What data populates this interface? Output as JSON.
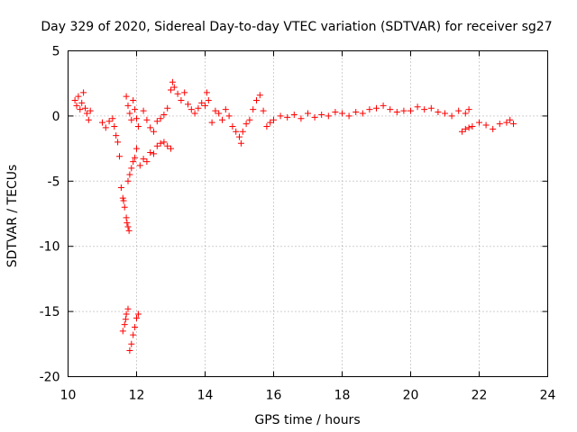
{
  "chart_data": {
    "type": "scatter",
    "title": "Day 329 of 2020, Sidereal Day-to-day VTEC variation (SDTVAR) for receiver sg27",
    "xlabel": "GPS time / hours",
    "ylabel": "SDTVAR / TECUs",
    "xlim": [
      10,
      24
    ],
    "ylim": [
      -20,
      5
    ],
    "xticks": [
      10,
      12,
      14,
      16,
      18,
      20,
      22,
      24
    ],
    "yticks": [
      5,
      0,
      -5,
      -10,
      -15,
      -20
    ],
    "grid": true,
    "marker": "+",
    "series": [
      {
        "name": "sg27",
        "color": "#ff0000",
        "points": [
          [
            10.2,
            1.2
          ],
          [
            10.25,
            0.8
          ],
          [
            10.3,
            1.5
          ],
          [
            10.35,
            0.5
          ],
          [
            10.4,
            1.0
          ],
          [
            10.45,
            1.8
          ],
          [
            10.5,
            0.6
          ],
          [
            10.55,
            0.2
          ],
          [
            10.6,
            -0.3
          ],
          [
            10.65,
            0.4
          ],
          [
            11.0,
            -0.5
          ],
          [
            11.1,
            -0.9
          ],
          [
            11.2,
            -0.4
          ],
          [
            11.3,
            -0.2
          ],
          [
            11.35,
            -0.8
          ],
          [
            11.4,
            -1.5
          ],
          [
            11.45,
            -2.0
          ],
          [
            11.5,
            -3.1
          ],
          [
            11.55,
            -5.5
          ],
          [
            11.6,
            -6.3
          ],
          [
            11.62,
            -6.5
          ],
          [
            11.65,
            -7.0
          ],
          [
            11.7,
            -7.8
          ],
          [
            11.72,
            -8.2
          ],
          [
            11.75,
            -8.5
          ],
          [
            11.78,
            -8.8
          ],
          [
            11.6,
            -16.5
          ],
          [
            11.65,
            -16.0
          ],
          [
            11.68,
            -15.6
          ],
          [
            11.7,
            -15.2
          ],
          [
            11.75,
            -14.8
          ],
          [
            11.8,
            -18.0
          ],
          [
            11.85,
            -17.5
          ],
          [
            11.9,
            -16.8
          ],
          [
            11.95,
            -16.2
          ],
          [
            12.0,
            -15.5
          ],
          [
            12.05,
            -15.2
          ],
          [
            11.75,
            -5.0
          ],
          [
            11.8,
            -4.5
          ],
          [
            11.85,
            -4.0
          ],
          [
            11.9,
            -3.5
          ],
          [
            11.95,
            -3.2
          ],
          [
            12.0,
            -2.5
          ],
          [
            11.7,
            1.5
          ],
          [
            11.75,
            0.8
          ],
          [
            11.8,
            0.2
          ],
          [
            11.85,
            -0.3
          ],
          [
            11.9,
            1.2
          ],
          [
            11.95,
            0.5
          ],
          [
            12.0,
            -0.2
          ],
          [
            12.05,
            -0.8
          ],
          [
            12.1,
            -3.8
          ],
          [
            12.2,
            -3.3
          ],
          [
            12.3,
            -3.5
          ],
          [
            12.4,
            -2.8
          ],
          [
            12.5,
            -2.9
          ],
          [
            12.6,
            -2.3
          ],
          [
            12.7,
            -2.1
          ],
          [
            12.8,
            -2.0
          ],
          [
            12.9,
            -2.3
          ],
          [
            13.0,
            -2.5
          ],
          [
            12.2,
            0.4
          ],
          [
            12.3,
            -0.3
          ],
          [
            12.4,
            -0.9
          ],
          [
            12.5,
            -1.2
          ],
          [
            12.6,
            -0.4
          ],
          [
            12.7,
            -0.2
          ],
          [
            12.8,
            0.1
          ],
          [
            12.9,
            0.6
          ],
          [
            13.0,
            2.0
          ],
          [
            13.05,
            2.6
          ],
          [
            13.1,
            2.2
          ],
          [
            13.2,
            1.7
          ],
          [
            13.3,
            1.2
          ],
          [
            13.4,
            1.8
          ],
          [
            13.5,
            0.9
          ],
          [
            13.6,
            0.5
          ],
          [
            13.7,
            0.2
          ],
          [
            13.8,
            0.6
          ],
          [
            13.9,
            1.0
          ],
          [
            14.0,
            0.8
          ],
          [
            14.05,
            1.8
          ],
          [
            14.1,
            1.2
          ],
          [
            14.2,
            -0.5
          ],
          [
            14.3,
            0.4
          ],
          [
            14.4,
            0.2
          ],
          [
            14.5,
            -0.3
          ],
          [
            14.6,
            0.5
          ],
          [
            14.7,
            0.0
          ],
          [
            14.8,
            -0.8
          ],
          [
            14.9,
            -1.2
          ],
          [
            15.0,
            -1.6
          ],
          [
            15.05,
            -2.1
          ],
          [
            15.1,
            -1.2
          ],
          [
            15.2,
            -0.6
          ],
          [
            15.3,
            -0.3
          ],
          [
            15.4,
            0.5
          ],
          [
            15.5,
            1.2
          ],
          [
            15.6,
            1.6
          ],
          [
            15.7,
            0.4
          ],
          [
            15.8,
            -0.8
          ],
          [
            15.9,
            -0.5
          ],
          [
            16.0,
            -0.3
          ],
          [
            16.2,
            0.0
          ],
          [
            16.4,
            -0.1
          ],
          [
            16.6,
            0.1
          ],
          [
            16.8,
            -0.2
          ],
          [
            17.0,
            0.2
          ],
          [
            17.2,
            -0.1
          ],
          [
            17.4,
            0.1
          ],
          [
            17.6,
            0.0
          ],
          [
            17.8,
            0.3
          ],
          [
            18.0,
            0.2
          ],
          [
            18.2,
            0.0
          ],
          [
            18.4,
            0.3
          ],
          [
            18.6,
            0.2
          ],
          [
            18.8,
            0.5
          ],
          [
            19.0,
            0.6
          ],
          [
            19.2,
            0.8
          ],
          [
            19.4,
            0.5
          ],
          [
            19.6,
            0.3
          ],
          [
            19.8,
            0.4
          ],
          [
            20.0,
            0.4
          ],
          [
            20.2,
            0.7
          ],
          [
            20.4,
            0.5
          ],
          [
            20.6,
            0.6
          ],
          [
            20.8,
            0.3
          ],
          [
            21.0,
            0.2
          ],
          [
            21.2,
            0.0
          ],
          [
            21.4,
            0.4
          ],
          [
            21.6,
            0.2
          ],
          [
            21.7,
            0.5
          ],
          [
            21.5,
            -1.2
          ],
          [
            21.6,
            -1.0
          ],
          [
            21.7,
            -0.9
          ],
          [
            21.8,
            -0.8
          ],
          [
            22.0,
            -0.5
          ],
          [
            22.2,
            -0.7
          ],
          [
            22.4,
            -1.0
          ],
          [
            22.6,
            -0.6
          ],
          [
            22.8,
            -0.5
          ],
          [
            22.9,
            -0.3
          ],
          [
            23.0,
            -0.6
          ]
        ]
      }
    ]
  }
}
